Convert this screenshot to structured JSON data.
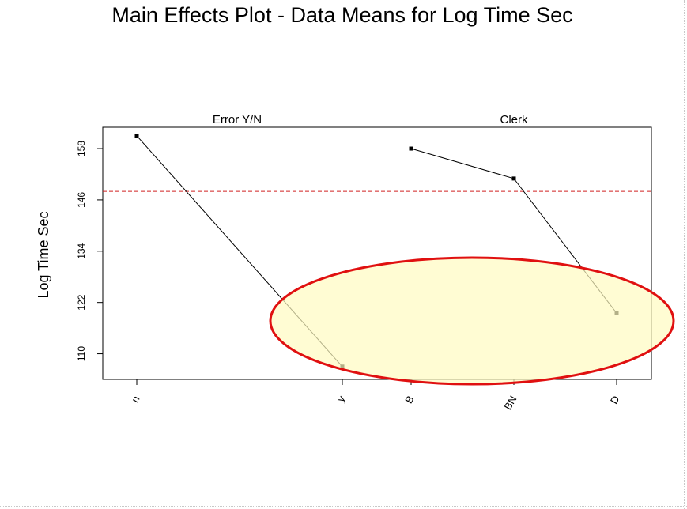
{
  "chart_data": {
    "type": "line",
    "title": "Main Effects Plot - Data Means for Log Time Sec",
    "ylabel": "Log Time Sec",
    "ylim": [
      104,
      163
    ],
    "yticks": [
      110,
      122,
      134,
      146,
      158
    ],
    "ytick_labels": [
      "110",
      "122",
      "134",
      "146",
      "158"
    ],
    "reference_line": 148,
    "grid": false,
    "panels": [
      {
        "title": "Error Y/N",
        "categories": [
          "n",
          "y"
        ],
        "values": [
          161,
          107
        ]
      },
      {
        "title": "Clerk",
        "categories": [
          "B",
          "BN",
          "D"
        ],
        "values": [
          158,
          151,
          119.5
        ]
      }
    ]
  },
  "annotation": {
    "shape": "ellipse",
    "fill": "#fffbc0",
    "stroke": "#e01010"
  },
  "colors": {
    "line": "#000000",
    "reference_line": "#d02020"
  }
}
